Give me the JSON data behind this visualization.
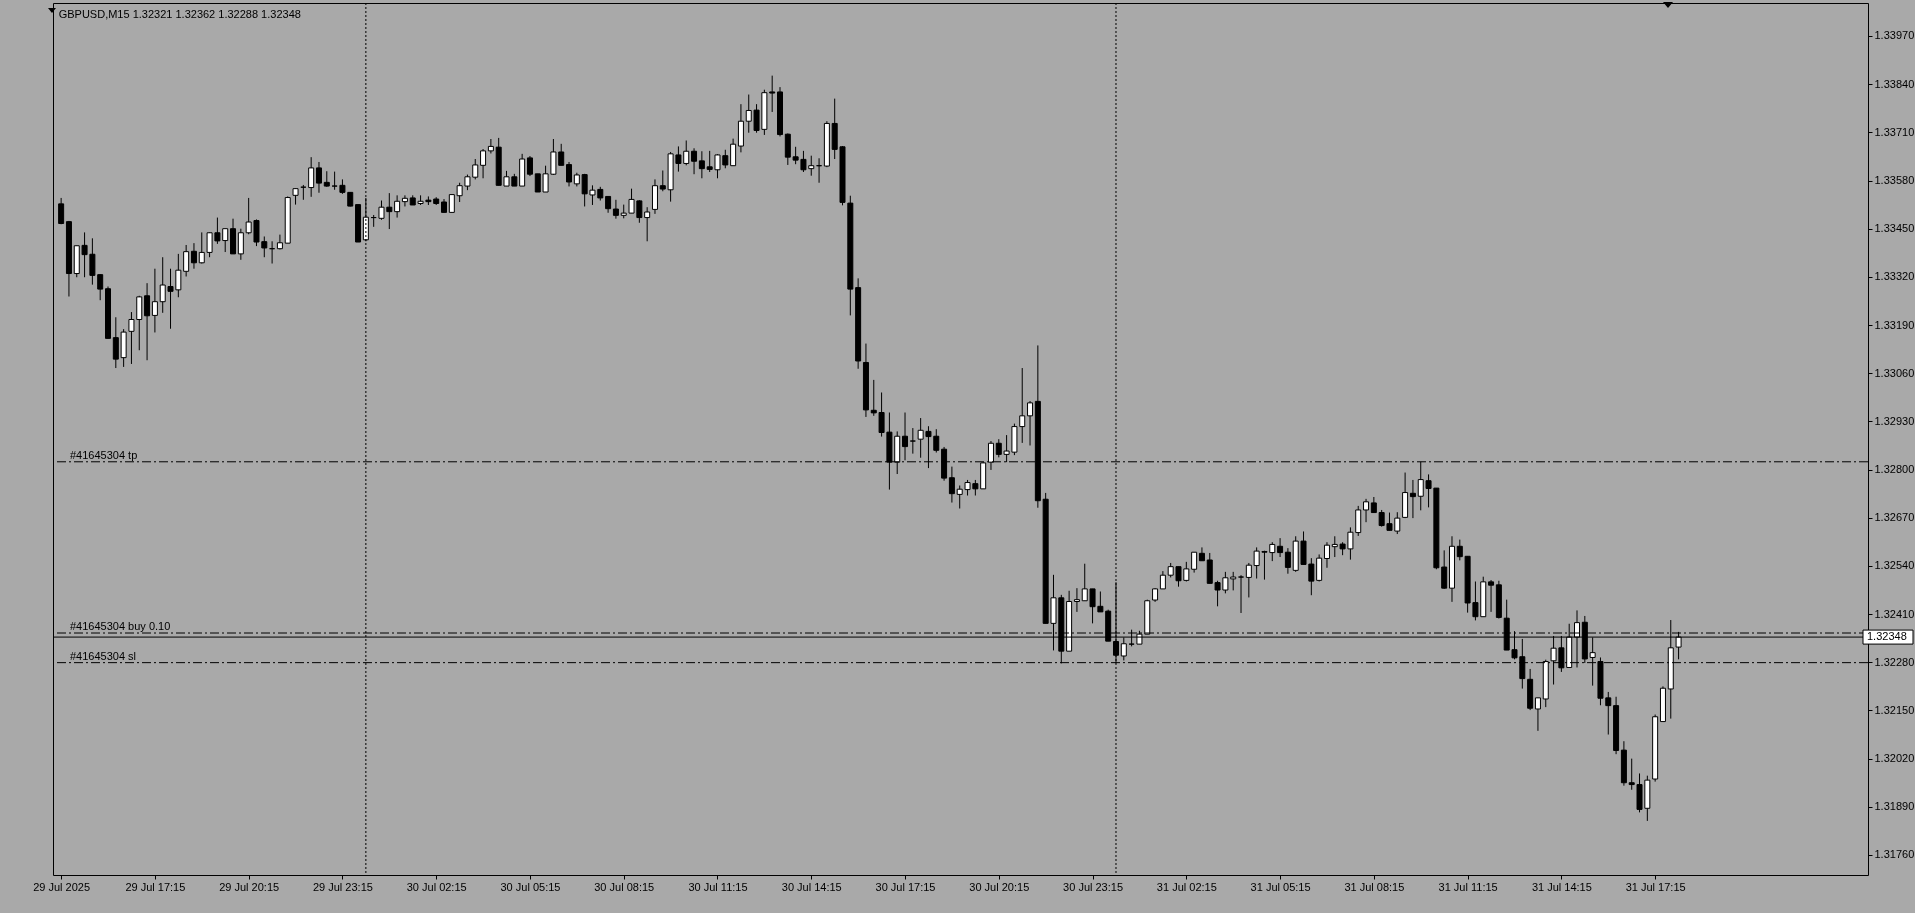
{
  "chart_data": {
    "type": "candlestick",
    "title": "GBPUSD,M15  1.32321 1.32362 1.32288 1.32348",
    "x": [
      "2025-07-29T14:15",
      "2025-07-29T14:30",
      "2025-07-29T14:45",
      "2025-07-29T15:00",
      "2025-07-29T15:15",
      "2025-07-29T15:30",
      "2025-07-29T15:45",
      "2025-07-29T16:00",
      "2025-07-29T16:15",
      "2025-07-29T16:30",
      "2025-07-29T16:45",
      "2025-07-29T17:00",
      "2025-07-29T17:15",
      "2025-07-29T17:30",
      "2025-07-29T17:45",
      "2025-07-29T18:00",
      "2025-07-29T18:15",
      "2025-07-29T18:30",
      "2025-07-29T18:45",
      "2025-07-29T19:00",
      "2025-07-29T19:15",
      "2025-07-29T19:30",
      "2025-07-29T19:45",
      "2025-07-29T20:00",
      "2025-07-29T20:15",
      "2025-07-29T20:30",
      "2025-07-29T20:45",
      "2025-07-29T21:00",
      "2025-07-29T21:15",
      "2025-07-29T21:30",
      "2025-07-29T21:45",
      "2025-07-29T22:00",
      "2025-07-29T22:15",
      "2025-07-29T22:30",
      "2025-07-29T22:45",
      "2025-07-29T23:00",
      "2025-07-29T23:15",
      "2025-07-29T23:30",
      "2025-07-29T23:45",
      "2025-07-30T00:00",
      "2025-07-30T00:15",
      "2025-07-30T00:30",
      "2025-07-30T00:45",
      "2025-07-30T01:00",
      "2025-07-30T01:15",
      "2025-07-30T01:30",
      "2025-07-30T01:45",
      "2025-07-30T02:00",
      "2025-07-30T02:15",
      "2025-07-30T02:30",
      "2025-07-30T02:45",
      "2025-07-30T03:00",
      "2025-07-30T03:15",
      "2025-07-30T03:30",
      "2025-07-30T03:45",
      "2025-07-30T04:00",
      "2025-07-30T04:15",
      "2025-07-30T04:30",
      "2025-07-30T04:45",
      "2025-07-30T05:00",
      "2025-07-30T05:15",
      "2025-07-30T05:30",
      "2025-07-30T05:45",
      "2025-07-30T06:00",
      "2025-07-30T06:15",
      "2025-07-30T06:30",
      "2025-07-30T06:45",
      "2025-07-30T07:00",
      "2025-07-30T07:15",
      "2025-07-30T07:30",
      "2025-07-30T07:45",
      "2025-07-30T08:00",
      "2025-07-30T08:15",
      "2025-07-30T08:30",
      "2025-07-30T08:45",
      "2025-07-30T09:00",
      "2025-07-30T09:15",
      "2025-07-30T09:30",
      "2025-07-30T09:45",
      "2025-07-30T10:00",
      "2025-07-30T10:15",
      "2025-07-30T10:30",
      "2025-07-30T10:45",
      "2025-07-30T11:00",
      "2025-07-30T11:15",
      "2025-07-30T11:30",
      "2025-07-30T11:45",
      "2025-07-30T12:00",
      "2025-07-30T12:15",
      "2025-07-30T12:30",
      "2025-07-30T12:45",
      "2025-07-30T13:00",
      "2025-07-30T13:15",
      "2025-07-30T13:30",
      "2025-07-30T13:45",
      "2025-07-30T14:00",
      "2025-07-30T14:15",
      "2025-07-30T14:30",
      "2025-07-30T14:45",
      "2025-07-30T15:00",
      "2025-07-30T15:15",
      "2025-07-30T15:30",
      "2025-07-30T15:45",
      "2025-07-30T16:00",
      "2025-07-30T16:15",
      "2025-07-30T16:30",
      "2025-07-30T16:45",
      "2025-07-30T17:00",
      "2025-07-30T17:15",
      "2025-07-30T17:30",
      "2025-07-30T17:45",
      "2025-07-30T18:00",
      "2025-07-30T18:15",
      "2025-07-30T18:30",
      "2025-07-30T18:45",
      "2025-07-30T19:00",
      "2025-07-30T19:15",
      "2025-07-30T19:30",
      "2025-07-30T19:45",
      "2025-07-30T20:00",
      "2025-07-30T20:15",
      "2025-07-30T20:30",
      "2025-07-30T20:45",
      "2025-07-30T21:00",
      "2025-07-30T21:15",
      "2025-07-30T21:30",
      "2025-07-30T21:45",
      "2025-07-30T22:00",
      "2025-07-30T22:15",
      "2025-07-30T22:30",
      "2025-07-30T22:45",
      "2025-07-30T23:00",
      "2025-07-30T23:15",
      "2025-07-30T23:30",
      "2025-07-30T23:45",
      "2025-07-31T00:00",
      "2025-07-31T00:15",
      "2025-07-31T00:30",
      "2025-07-31T00:45",
      "2025-07-31T01:00",
      "2025-07-31T01:15",
      "2025-07-31T01:30",
      "2025-07-31T01:45",
      "2025-07-31T02:00",
      "2025-07-31T02:15",
      "2025-07-31T02:30",
      "2025-07-31T02:45",
      "2025-07-31T03:00",
      "2025-07-31T03:15",
      "2025-07-31T03:30",
      "2025-07-31T03:45",
      "2025-07-31T04:00",
      "2025-07-31T04:15",
      "2025-07-31T04:30",
      "2025-07-31T04:45",
      "2025-07-31T05:00",
      "2025-07-31T05:15",
      "2025-07-31T05:30",
      "2025-07-31T05:45",
      "2025-07-31T06:00",
      "2025-07-31T06:15",
      "2025-07-31T06:30",
      "2025-07-31T06:45",
      "2025-07-31T07:00",
      "2025-07-31T07:15",
      "2025-07-31T07:30",
      "2025-07-31T07:45",
      "2025-07-31T08:00",
      "2025-07-31T08:15",
      "2025-07-31T08:30",
      "2025-07-31T08:45",
      "2025-07-31T09:00",
      "2025-07-31T09:15",
      "2025-07-31T09:30",
      "2025-07-31T09:45",
      "2025-07-31T10:00",
      "2025-07-31T10:15",
      "2025-07-31T10:30",
      "2025-07-31T10:45",
      "2025-07-31T11:00",
      "2025-07-31T11:15",
      "2025-07-31T11:30",
      "2025-07-31T11:45",
      "2025-07-31T12:00",
      "2025-07-31T12:15",
      "2025-07-31T12:30",
      "2025-07-31T12:45",
      "2025-07-31T13:00",
      "2025-07-31T13:15",
      "2025-07-31T13:30",
      "2025-07-31T13:45",
      "2025-07-31T14:00",
      "2025-07-31T14:15",
      "2025-07-31T14:30",
      "2025-07-31T14:45",
      "2025-07-31T15:00",
      "2025-07-31T15:15",
      "2025-07-31T15:30",
      "2025-07-31T15:45",
      "2025-07-31T16:00",
      "2025-07-31T16:15",
      "2025-07-31T16:30",
      "2025-07-31T16:45",
      "2025-07-31T17:00",
      "2025-07-31T17:15",
      "2025-07-31T17:30",
      "2025-07-31T17:45",
      "2025-07-31T18:00"
    ],
    "ohlc": [
      [
        1.33517,
        1.33533,
        1.33462,
        1.33464
      ],
      [
        1.33469,
        1.33471,
        1.33267,
        1.33329
      ],
      [
        1.33329,
        1.33404,
        1.33319,
        1.33404
      ],
      [
        1.33405,
        1.3344,
        1.33319,
        1.3338
      ],
      [
        1.33381,
        1.33424,
        1.33299,
        1.33324
      ],
      [
        1.33326,
        1.33327,
        1.33257,
        1.33287
      ],
      [
        1.33288,
        1.33294,
        1.33154,
        1.33154
      ],
      [
        1.33156,
        1.33211,
        1.33074,
        1.33098
      ],
      [
        1.33102,
        1.33179,
        1.33077,
        1.33171
      ],
      [
        1.33173,
        1.33225,
        1.33085,
        1.33205
      ],
      [
        1.33205,
        1.33269,
        1.33122,
        1.33266
      ],
      [
        1.33269,
        1.33303,
        1.33095,
        1.33215
      ],
      [
        1.33216,
        1.33342,
        1.3317,
        1.33253
      ],
      [
        1.33253,
        1.33373,
        1.33223,
        1.33298
      ],
      [
        1.33294,
        1.33342,
        1.3318,
        1.33281
      ],
      [
        1.33285,
        1.33382,
        1.33265,
        1.33338
      ],
      [
        1.33335,
        1.33406,
        1.33321,
        1.33388
      ],
      [
        1.33389,
        1.33411,
        1.33342,
        1.33358
      ],
      [
        1.33358,
        1.3344,
        1.33356,
        1.33386
      ],
      [
        1.33386,
        1.3344,
        1.33373,
        1.33439
      ],
      [
        1.33439,
        1.3348,
        1.33409,
        1.33417
      ],
      [
        1.33418,
        1.3345,
        1.33387,
        1.3345
      ],
      [
        1.3345,
        1.33477,
        1.33382,
        1.33382
      ],
      [
        1.33382,
        1.3345,
        1.33366,
        1.33439
      ],
      [
        1.33439,
        1.33533,
        1.33435,
        1.33468
      ],
      [
        1.33472,
        1.33475,
        1.33403,
        1.33414
      ],
      [
        1.33415,
        1.33429,
        1.33373,
        1.33398
      ],
      [
        1.33396,
        1.33416,
        1.33356,
        1.33396
      ],
      [
        1.33396,
        1.33434,
        1.33394,
        1.33412
      ],
      [
        1.33411,
        1.33537,
        1.33411,
        1.33534
      ],
      [
        1.3354,
        1.33559,
        1.33515,
        1.33558
      ],
      [
        1.33562,
        1.33568,
        1.33528,
        1.33562
      ],
      [
        1.33561,
        1.33643,
        1.33536,
        1.33614
      ],
      [
        1.33614,
        1.3363,
        1.33547,
        1.33573
      ],
      [
        1.33575,
        1.33605,
        1.33563,
        1.33565
      ],
      [
        1.33565,
        1.33604,
        1.33555,
        1.33565
      ],
      [
        1.33567,
        1.33583,
        1.33544,
        1.33548
      ],
      [
        1.33548,
        1.33549,
        1.3351,
        1.33511
      ],
      [
        1.33515,
        1.33515,
        1.33414,
        1.33414
      ],
      [
        1.3342,
        1.33533,
        1.33416,
        1.33481
      ],
      [
        1.3348,
        1.33487,
        1.33455,
        1.3348
      ],
      [
        1.33478,
        1.33526,
        1.33474,
        1.33508
      ],
      [
        1.33508,
        1.33546,
        1.33449,
        1.33496
      ],
      [
        1.33496,
        1.3354,
        1.3348,
        1.33524
      ],
      [
        1.33523,
        1.3354,
        1.3351,
        1.33532
      ],
      [
        1.33533,
        1.3354,
        1.33514,
        1.33514
      ],
      [
        1.33518,
        1.3354,
        1.33514,
        1.33524
      ],
      [
        1.33527,
        1.33537,
        1.33514,
        1.33523
      ],
      [
        1.3353,
        1.33535,
        1.33514,
        1.33518
      ],
      [
        1.33522,
        1.3353,
        1.33494,
        1.33494
      ],
      [
        1.33494,
        1.33543,
        1.33494,
        1.33542
      ],
      [
        1.33539,
        1.33574,
        1.33522,
        1.33566
      ],
      [
        1.33565,
        1.33596,
        1.33554,
        1.3359
      ],
      [
        1.33589,
        1.33638,
        1.33583,
        1.33622
      ],
      [
        1.33621,
        1.33665,
        1.33586,
        1.3366
      ],
      [
        1.3366,
        1.33692,
        1.33653,
        1.33672
      ],
      [
        1.3367,
        1.33695,
        1.33567,
        1.33567
      ],
      [
        1.33565,
        1.33606,
        1.33565,
        1.3359
      ],
      [
        1.3359,
        1.33598,
        1.33565,
        1.33565
      ],
      [
        1.33565,
        1.33652,
        1.33565,
        1.33638
      ],
      [
        1.33641,
        1.33646,
        1.33592,
        1.33597
      ],
      [
        1.33598,
        1.33598,
        1.33549,
        1.33549
      ],
      [
        1.33549,
        1.3362,
        1.33549,
        1.33598
      ],
      [
        1.33597,
        1.33692,
        1.33595,
        1.33657
      ],
      [
        1.33657,
        1.33679,
        1.33621,
        1.33621
      ],
      [
        1.33623,
        1.3363,
        1.33564,
        1.33576
      ],
      [
        1.33571,
        1.33601,
        1.33564,
        1.33595
      ],
      [
        1.33596,
        1.33598,
        1.3351,
        1.33544
      ],
      [
        1.33541,
        1.33567,
        1.33514,
        1.33554
      ],
      [
        1.33556,
        1.33563,
        1.33526,
        1.33533
      ],
      [
        1.33537,
        1.33537,
        1.33493,
        1.33504
      ],
      [
        1.33503,
        1.33528,
        1.33477,
        1.33486
      ],
      [
        1.33486,
        1.33515,
        1.33478,
        1.33492
      ],
      [
        1.33492,
        1.33558,
        1.33492,
        1.33529
      ],
      [
        1.33525,
        1.33527,
        1.33466,
        1.3348
      ],
      [
        1.3348,
        1.33508,
        1.33416,
        1.33495
      ],
      [
        1.33502,
        1.33583,
        1.3349,
        1.33566
      ],
      [
        1.33566,
        1.33607,
        1.33551,
        1.33557
      ],
      [
        1.33555,
        1.33657,
        1.33523,
        1.33652
      ],
      [
        1.33649,
        1.33672,
        1.33604,
        1.33626
      ],
      [
        1.33626,
        1.33688,
        1.33621,
        1.33659
      ],
      [
        1.33659,
        1.33667,
        1.33597,
        1.33632
      ],
      [
        1.33633,
        1.33659,
        1.33586,
        1.33612
      ],
      [
        1.33617,
        1.3366,
        1.33603,
        1.3361
      ],
      [
        1.33609,
        1.33651,
        1.33586,
        1.33649
      ],
      [
        1.33647,
        1.33663,
        1.33613,
        1.33622
      ],
      [
        1.3362,
        1.33693,
        1.3362,
        1.33678
      ],
      [
        1.33673,
        1.33786,
        1.33656,
        1.3374
      ],
      [
        1.3374,
        1.33812,
        1.33709,
        1.33769
      ],
      [
        1.3377,
        1.33786,
        1.33709,
        1.33715
      ],
      [
        1.33718,
        1.33825,
        1.33703,
        1.33817
      ],
      [
        1.33819,
        1.33863,
        1.33765,
        1.33816
      ],
      [
        1.33819,
        1.33832,
        1.33699,
        1.33704
      ],
      [
        1.33705,
        1.33707,
        1.33622,
        1.33643
      ],
      [
        1.33644,
        1.33671,
        1.33624,
        1.33635
      ],
      [
        1.33637,
        1.3366,
        1.33603,
        1.33609
      ],
      [
        1.33612,
        1.33647,
        1.33593,
        1.3362
      ],
      [
        1.3362,
        1.3364,
        1.33574,
        1.3362
      ],
      [
        1.33619,
        1.3374,
        1.33616,
        1.33734
      ],
      [
        1.33734,
        1.33801,
        1.33638,
        1.33664
      ],
      [
        1.33671,
        1.33673,
        1.33513,
        1.33521
      ],
      [
        1.33519,
        1.33539,
        1.33216,
        1.33287
      ],
      [
        1.33291,
        1.33316,
        1.33072,
        1.33093
      ],
      [
        1.33089,
        1.3314,
        1.32942,
        1.32961
      ],
      [
        1.3296,
        1.33042,
        1.32945,
        1.32953
      ],
      [
        1.32954,
        1.33008,
        1.32889,
        1.329
      ],
      [
        1.32901,
        1.32954,
        1.32746,
        1.3282
      ],
      [
        1.3282,
        1.32903,
        1.32788,
        1.3289
      ],
      [
        1.3289,
        1.32954,
        1.32825,
        1.32862
      ],
      [
        1.32877,
        1.32912,
        1.32843,
        1.32877
      ],
      [
        1.32882,
        1.32939,
        1.32832,
        1.32906
      ],
      [
        1.32903,
        1.32917,
        1.32804,
        1.32889
      ],
      [
        1.3289,
        1.32909,
        1.32846,
        1.32852
      ],
      [
        1.32855,
        1.32861,
        1.3277,
        1.32777
      ],
      [
        1.32778,
        1.32808,
        1.32711,
        1.32735
      ],
      [
        1.32733,
        1.32757,
        1.32695,
        1.32747
      ],
      [
        1.32746,
        1.32772,
        1.3273,
        1.32765
      ],
      [
        1.32762,
        1.32772,
        1.3273,
        1.32748
      ],
      [
        1.32748,
        1.3282,
        1.32748,
        1.32818
      ],
      [
        1.3282,
        1.32877,
        1.32799,
        1.32871
      ],
      [
        1.32871,
        1.32882,
        1.32833,
        1.32841
      ],
      [
        1.32841,
        1.32893,
        1.3282,
        1.3285
      ],
      [
        1.32847,
        1.32924,
        1.32839,
        1.32916
      ],
      [
        1.32916,
        1.33074,
        1.32872,
        1.32945
      ],
      [
        1.32945,
        1.32985,
        1.32865,
        1.3298
      ],
      [
        1.32984,
        1.33135,
        1.32697,
        1.32716
      ],
      [
        1.3272,
        1.32737,
        1.32385,
        1.32385
      ],
      [
        1.32385,
        1.32516,
        1.32312,
        1.32454
      ],
      [
        1.32454,
        1.32462,
        1.32277,
        1.3231
      ],
      [
        1.3231,
        1.32473,
        1.3231,
        1.32444
      ],
      [
        1.32444,
        1.3248,
        1.32416,
        1.32449
      ],
      [
        1.32446,
        1.32546,
        1.32446,
        1.32478
      ],
      [
        1.32478,
        1.32478,
        1.32385,
        1.3243
      ],
      [
        1.32431,
        1.32471,
        1.32416,
        1.32416
      ],
      [
        1.32418,
        1.32422,
        1.32337,
        1.32337
      ],
      [
        1.32336,
        1.32496,
        1.32277,
        1.32299
      ],
      [
        1.32297,
        1.32347,
        1.32285,
        1.3233
      ],
      [
        1.32329,
        1.32368,
        1.32323,
        1.32329
      ],
      [
        1.32329,
        1.32365,
        1.32329,
        1.32356
      ],
      [
        1.32356,
        1.32449,
        1.32356,
        1.32446
      ],
      [
        1.32448,
        1.3248,
        1.32443,
        1.32478
      ],
      [
        1.32478,
        1.32526,
        1.32478,
        1.32515
      ],
      [
        1.32515,
        1.32548,
        1.32509,
        1.32538
      ],
      [
        1.32538,
        1.32538,
        1.32484,
        1.325
      ],
      [
        1.32501,
        1.32551,
        1.32498,
        1.32532
      ],
      [
        1.32531,
        1.32577,
        1.32522,
        1.32577
      ],
      [
        1.32574,
        1.3259,
        1.32554,
        1.32554
      ],
      [
        1.32556,
        1.32575,
        1.32493,
        1.32493
      ],
      [
        1.32495,
        1.325,
        1.32431,
        1.32475
      ],
      [
        1.32475,
        1.32524,
        1.32466,
        1.32508
      ],
      [
        1.32505,
        1.32524,
        1.32474,
        1.3251
      ],
      [
        1.3251,
        1.32515,
        1.32413,
        1.3251
      ],
      [
        1.32509,
        1.32548,
        1.32455,
        1.32542
      ],
      [
        1.32541,
        1.3259,
        1.32506,
        1.3258
      ],
      [
        1.32579,
        1.32581,
        1.32503,
        1.32577
      ],
      [
        1.32576,
        1.32604,
        1.32553,
        1.32598
      ],
      [
        1.32593,
        1.32615,
        1.32564,
        1.32576
      ],
      [
        1.32577,
        1.32588,
        1.32519,
        1.32536
      ],
      [
        1.32528,
        1.3262,
        1.32524,
        1.32607
      ],
      [
        1.32607,
        1.32633,
        1.32544,
        1.32544
      ],
      [
        1.32545,
        1.32561,
        1.32461,
        1.32499
      ],
      [
        1.32501,
        1.32571,
        1.32498,
        1.32561
      ],
      [
        1.3256,
        1.32604,
        1.32535,
        1.32596
      ],
      [
        1.32592,
        1.3262,
        1.32564,
        1.32598
      ],
      [
        1.32599,
        1.32604,
        1.32569,
        1.32586
      ],
      [
        1.32586,
        1.32644,
        1.32557,
        1.32631
      ],
      [
        1.3263,
        1.32702,
        1.32621,
        1.32691
      ],
      [
        1.32691,
        1.32721,
        1.32658,
        1.32713
      ],
      [
        1.3271,
        1.32726,
        1.32684,
        1.32684
      ],
      [
        1.32684,
        1.32691,
        1.32646,
        1.32649
      ],
      [
        1.32654,
        1.32684,
        1.32636,
        1.32636
      ],
      [
        1.32634,
        1.32685,
        1.32626,
        1.32669
      ],
      [
        1.32671,
        1.32792,
        1.32669,
        1.32738
      ],
      [
        1.32736,
        1.32772,
        1.32669,
        1.32727
      ],
      [
        1.32728,
        1.32821,
        1.3269,
        1.32773
      ],
      [
        1.3277,
        1.32787,
        1.32698,
        1.32749
      ],
      [
        1.3275,
        1.3275,
        1.32531,
        1.32535
      ],
      [
        1.32537,
        1.32582,
        1.32478,
        1.3248
      ],
      [
        1.3248,
        1.3262,
        1.32443,
        1.32593
      ],
      [
        1.32593,
        1.32611,
        1.32555,
        1.32565
      ],
      [
        1.32566,
        1.32566,
        1.32414,
        1.3244
      ],
      [
        1.32441,
        1.32498,
        1.32393,
        1.32403
      ],
      [
        1.32403,
        1.32511,
        1.32403,
        1.32497
      ],
      [
        1.32497,
        1.32502,
        1.32416,
        1.32488
      ],
      [
        1.32489,
        1.325,
        1.32398,
        1.32401
      ],
      [
        1.32399,
        1.32449,
        1.32313,
        1.32313
      ],
      [
        1.32314,
        1.32364,
        1.32288,
        1.32292
      ],
      [
        1.32295,
        1.32343,
        1.32209,
        1.32236
      ],
      [
        1.32234,
        1.32262,
        1.32151,
        1.32156
      ],
      [
        1.32154,
        1.32184,
        1.32095,
        1.32184
      ],
      [
        1.32181,
        1.32287,
        1.32159,
        1.32282
      ],
      [
        1.32284,
        1.32351,
        1.3222,
        1.32318
      ],
      [
        1.32319,
        1.32351,
        1.32254,
        1.32265
      ],
      [
        1.32266,
        1.32384,
        1.32266,
        1.32348
      ],
      [
        1.32348,
        1.3242,
        1.32266,
        1.32387
      ],
      [
        1.32388,
        1.32405,
        1.32278,
        1.32289
      ],
      [
        1.32293,
        1.32347,
        1.32217,
        1.32306
      ],
      [
        1.32282,
        1.32293,
        1.32164,
        1.32183
      ],
      [
        1.32184,
        1.322,
        1.32085,
        1.32163
      ],
      [
        1.32163,
        1.32187,
        1.32032,
        1.32042
      ],
      [
        1.32043,
        1.32067,
        1.31947,
        1.31955
      ],
      [
        1.31955,
        1.3202,
        1.31936,
        1.3195
      ],
      [
        1.3195,
        1.3198,
        1.31875,
        1.31883
      ],
      [
        1.31886,
        1.31974,
        1.31852,
        1.31962
      ],
      [
        1.31965,
        1.32139,
        1.31958,
        1.32133
      ],
      [
        1.3212,
        1.32215,
        1.3212,
        1.3221
      ],
      [
        1.32208,
        1.32394,
        1.32128,
        1.32319
      ],
      [
        1.32321,
        1.32362,
        1.32288,
        1.32348
      ]
    ],
    "xlim": [
      "2025-07-29T14:09",
      "2025-07-31T23:54"
    ],
    "xticks": [
      {
        "value": "2025-07-29T14:15",
        "label": "29 Jul 2025"
      },
      {
        "value": "2025-07-29T17:15",
        "label": "29 Jul 17:15"
      },
      {
        "value": "2025-07-29T20:15",
        "label": "29 Jul 20:15"
      },
      {
        "value": "2025-07-29T23:15",
        "label": "29 Jul 23:15"
      },
      {
        "value": "2025-07-30T02:15",
        "label": "30 Jul 02:15"
      },
      {
        "value": "2025-07-30T05:15",
        "label": "30 Jul 05:15"
      },
      {
        "value": "2025-07-30T08:15",
        "label": "30 Jul 08:15"
      },
      {
        "value": "2025-07-30T11:15",
        "label": "30 Jul 11:15"
      },
      {
        "value": "2025-07-30T14:15",
        "label": "30 Jul 14:15"
      },
      {
        "value": "2025-07-30T17:15",
        "label": "30 Jul 17:15"
      },
      {
        "value": "2025-07-30T20:15",
        "label": "30 Jul 20:15"
      },
      {
        "value": "2025-07-30T23:15",
        "label": "30 Jul 23:15"
      },
      {
        "value": "2025-07-31T02:15",
        "label": "31 Jul 02:15"
      },
      {
        "value": "2025-07-31T05:15",
        "label": "31 Jul 05:15"
      },
      {
        "value": "2025-07-31T08:15",
        "label": "31 Jul 08:15"
      },
      {
        "value": "2025-07-31T11:15",
        "label": "31 Jul 11:15"
      },
      {
        "value": "2025-07-31T14:15",
        "label": "31 Jul 14:15"
      },
      {
        "value": "2025-07-31T17:15",
        "label": "31 Jul 17:15"
      }
    ],
    "ylim": [
      1.31706,
      1.34059
    ],
    "yticks": [
      {
        "value": 1.3176,
        "label": "1.31760"
      },
      {
        "value": 1.3189,
        "label": "1.31890"
      },
      {
        "value": 1.3202,
        "label": "1.32020"
      },
      {
        "value": 1.3215,
        "label": "1.32150"
      },
      {
        "value": 1.3228,
        "label": "1.32280"
      },
      {
        "value": 1.3241,
        "label": "1.32410"
      },
      {
        "value": 1.3254,
        "label": "1.32540"
      },
      {
        "value": 1.3267,
        "label": "1.32670"
      },
      {
        "value": 1.328,
        "label": "1.32800"
      },
      {
        "value": 1.3293,
        "label": "1.32930"
      },
      {
        "value": 1.3306,
        "label": "1.33060"
      },
      {
        "value": 1.3319,
        "label": "1.33190"
      },
      {
        "value": 1.3332,
        "label": "1.33320"
      },
      {
        "value": 1.3345,
        "label": "1.33450"
      },
      {
        "value": 1.3358,
        "label": "1.33580"
      },
      {
        "value": 1.3371,
        "label": "1.33710"
      },
      {
        "value": 1.3384,
        "label": "1.33840"
      },
      {
        "value": 1.3397,
        "label": "1.33970"
      }
    ],
    "ref_lines": [
      {
        "axis": "y",
        "value": 1.32821,
        "label": "#41645304 tp",
        "line_style": "dashed"
      },
      {
        "axis": "y",
        "value": 1.32359,
        "label": "#41645304 buy 0.10",
        "line_style": "dashed"
      },
      {
        "axis": "y",
        "value": 1.32279,
        "label": "#41645304 sl",
        "line_style": "dashed"
      },
      {
        "axis": "y",
        "value": 1.32348,
        "label": "1.32348",
        "line_style": "solid"
      },
      {
        "axis": "x",
        "value": "2025-07-30T00:00",
        "line_style": "dotted"
      },
      {
        "axis": "x",
        "value": "2025-07-31T00:00",
        "line_style": "dotted"
      }
    ]
  }
}
